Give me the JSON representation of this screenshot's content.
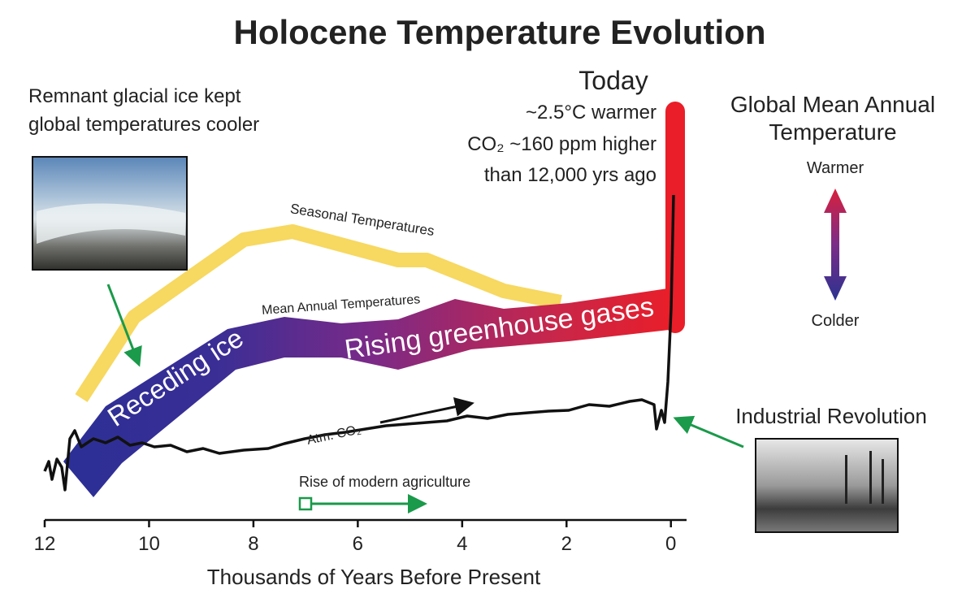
{
  "chart_data": {
    "type": "line",
    "title": "Holocene Temperature Evolution",
    "xlabel": "Thousands of Years Before Present",
    "xlim": [
      12,
      -0.3
    ],
    "xticks": [
      12,
      10,
      8,
      6,
      4,
      2,
      0
    ],
    "annotations": {
      "glacial_1": "Remnant glacial ice kept",
      "glacial_2": "global temperatures cooler",
      "today": "Today",
      "today_1": "~2.5°C warmer",
      "today_2": "CO₂ ~160 ppm higher",
      "today_3": "than 12,000 yrs ago",
      "gmat_1": "Global Mean Annual",
      "gmat_2": "Temperature",
      "warmer": "Warmer",
      "colder": "Colder",
      "seasonal": "Seasonal Temperatures",
      "mean_annual": "Mean Annual Temperatures",
      "receding": "Receding ice",
      "rising": "Rising greenhouse gases",
      "co2": "Atm. CO₂",
      "agriculture": "Rise of modern agriculture",
      "industrial": "Industrial Revolution"
    }
  }
}
